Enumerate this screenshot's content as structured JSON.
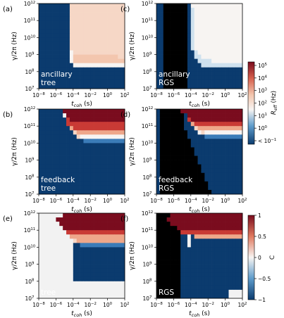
{
  "figure": {
    "colors": {
      "navy": "#0b3b6e",
      "black": "#000000",
      "grey": "#f2f2f2",
      "pale_white": "#f7f4f2",
      "light_peach": "#f6d7c6",
      "peach": "#f3c6ae",
      "salmon": "#eea78a",
      "red": "#c93a35",
      "dark_red": "#7a0c1e",
      "light_blue": "#cfe1ee",
      "mid_blue": "#5d9bcb",
      "blue": "#3b7cb8",
      "text_white": "#ffffff",
      "text_black": "#000000"
    },
    "colorbar_top": {
      "label": "R_eff (Hz)",
      "label_main": "R",
      "label_sub": "eff",
      "label_unit": " (Hz)",
      "ticks": [
        {
          "base": "10",
          "exp": "5",
          "label": "10^5"
        },
        {
          "base": "10",
          "exp": "4",
          "label": "10^4"
        },
        {
          "base": "10",
          "exp": "3",
          "label": "10^3"
        },
        {
          "base": "10",
          "exp": "2",
          "label": "10^2"
        },
        {
          "base": "10",
          "exp": "1",
          "label": "10^1"
        },
        {
          "base": "10",
          "exp": "0",
          "label": "10^0"
        },
        {
          "base": "< 10",
          "exp": "−1",
          "label": "< 10^-1"
        }
      ]
    },
    "colorbar_bottom": {
      "label": "C",
      "ticks": [
        "1",
        "0.5",
        "0",
        "−0.5",
        "−1"
      ]
    }
  },
  "chart_data": [
    {
      "panel": "(a)",
      "type": "heatmap",
      "annotation": [
        "ancillary",
        "tree"
      ],
      "xlabel": "t_coh (s)",
      "ylabel": "γ/2π (Hz)",
      "xticks": [
        "10^-8",
        "10^-6",
        "10^-4",
        "10^-2",
        "10^0",
        "10^2"
      ],
      "yticks": [
        "10^7",
        "10^8",
        "10^9",
        "10^10",
        "10^11",
        "10^12"
      ],
      "xlim": [
        "1e-8",
        "1e2"
      ],
      "ylim": [
        "1e7",
        "1e12"
      ],
      "scale": "log-log",
      "color_scale": "R_eff (Hz), log",
      "rows_top_to_bottom": [
        "NNNNNNNNNPPPPPPPPPPPPPPPP",
        "NNNNNNNNNPPPPPPPPPPPPPPPP",
        "NNNNNNNNNPPPPPPPPPPPPPPPP",
        "NNNNNNNNNPPPPPPPPPPPPPPPP",
        "NNNNNNNNNPPPPPPPPPPPPPPPP",
        "NNNNNNNNNPPPPPPPPPPPPPPPP",
        "NNNNNNNNNPPPPPPPPPPPPPPPP",
        "NNNNNNNNNPPPPPPPPPPPPPPPP",
        "NNNNNNNNNPPPPPPPPPPPPPPPP",
        "NNNNNNNNNPPPPPPPPPPPPPPPP",
        "NNNNNNNNNPPPPPPPPPPPPPPPP",
        "NNNNNNNNNWPPPPPPPPPPPPPPP",
        "NNNNNNNNNWpppppppppppppPP",
        "NNNNNNNNNWppppppppppppppp",
        "NNNNNNNNNNWWWWWWWWWWWWWWW",
        "NNNNNNNNNNNNNNNNNNNNNNNNN",
        "NNNNNNNNNNNNNNNNNNNNNNNNN",
        "NNNNNNNNNNNNNNNNNNNNNNNNN",
        "NNNNNNNNNNNNNNNNNNNNNNNNN",
        "NNNNNNNNNNNNNNNNNNNNNNNNN"
      ]
    },
    {
      "panel": "(b)",
      "type": "heatmap",
      "annotation": [
        "feedback",
        "tree"
      ],
      "xlabel": "t_coh (s)",
      "ylabel": "γ/2π (Hz)",
      "xticks": [
        "10^-8",
        "10^-6",
        "10^-4",
        "10^-2",
        "10^0",
        "10^2"
      ],
      "yticks": [
        "10^7",
        "10^8",
        "10^9",
        "10^10",
        "10^11",
        "10^12"
      ],
      "xlim": [
        "1e-8",
        "1e2"
      ],
      "ylim": [
        "1e7",
        "1e12"
      ],
      "scale": "log-log",
      "color_scale": "R_eff (Hz), log",
      "rows_top_to_bottom": [
        "NNNNNNNDDDDDDDDDDDDDDDDDD",
        "NNNNNNNWDDDDDDDDDDDDDDDDD",
        "NNNNNNNNRDDDDDDDDDDDDDDDD",
        "NNNNNNNNRRRRRRRRRRRRRRRRR",
        "NNNNNNNNNSRRRRRRRRRRRRRRR",
        "NNNNNNNNNNPSSSSSSSSSSSSSS",
        "NNNNNNNNNNNPWWWWWWWWWWWWW",
        "NNNNNNNNNNNNNBBBBBBBBBBBB",
        "NNNNNNNNNNNNNNNNNNNNNNNNN",
        "NNNNNNNNNNNNNNNNNNNNNNNNN",
        "NNNNNNNNNNNNNNNNNNNNNNNNN",
        "NNNNNNNNNNNNNNNNNNNNNNNNN",
        "NNNNNNNNNNNNNNNNNNNNNNNNN",
        "NNNNNNNNNNNNNNNNNNNNNNNNN",
        "NNNNNNNNNNNNNNNNNNNNNNNNN",
        "NNNNNNNNNNNNNNNNNNNNNNNNN",
        "NNNNNNNNNNNNNNNNNNNNNNNNN",
        "NNNNNNNNNNNNNNNNNNNNNNNNN",
        "NNNNNNNNNNNNNNNNNNNNNNNNN",
        "NNNNNNNNNNNNNNNNNNNNNNNNN"
      ]
    },
    {
      "panel": "(c)",
      "type": "heatmap",
      "annotation": [
        "ancillary",
        "RGS"
      ],
      "xlabel": "t_coh (s)",
      "ylabel": "γ/2π (Hz)",
      "xticks": [
        "10^-8",
        "10^-6",
        "10^-4",
        "10^-2",
        "10^0",
        "10^2"
      ],
      "yticks": [
        "10^7",
        "10^8",
        "10^9",
        "10^10",
        "10^11",
        "10^12"
      ],
      "xlim": [
        "1e-8",
        "1e2"
      ],
      "ylim": [
        "1e7",
        "1e12"
      ],
      "scale": "log-log",
      "color_scale": "R_eff (Hz), log",
      "rows_top_to_bottom": [
        "NNKKKKKKKNWWWWWWWWWWWWWWW",
        "NNKKKKKKKNLWWWWWWWWWWWWWW",
        "NNKKKKKKKNLWWWWWWWWWWWWWW",
        "NNKKKKKKKNLWWWWWWWWWWWWWW",
        "NNKKKKKKKNLWWWWWWWWWWWWWW",
        "NNKKKKKKKNLWWWWWWWWWWWWWW",
        "NNKKKKKKKNLWWWWWWWWWWWWWW",
        "NNKKKKKKKNLWWWWWWWWWWWWWW",
        "NNKKKKKKKNLWWWWWWWWWWWWWW",
        "NNKKKKKKKNLWWWWWWWWWWWWWW",
        "NNKKKKKKKNLWWWWWWWWWWWWWW",
        "NNKKKKKKKNNLWWWWWWWWWWWWW",
        "NNKKKKKKKNNLLWWWWWWWWWWWW",
        "NNKKKKKKKNNNLLLLWWWWWWWWW",
        "NNKKKKKKKNNNNLLLLLLLLLLLL",
        "NNKKKKKKKNNNNNNNNNNNNNNNN",
        "NNKKKKKKKNNNNNNNNNNNNNNNN",
        "NNKKKKKKKNNNNNNNNNNNNNNNN",
        "NNKKKKKKKNNNNNNNNNNNNNNNN",
        "NNKKKKKKKNNNNNNNNNNNNNNNN"
      ]
    },
    {
      "panel": "(d)",
      "type": "heatmap",
      "annotation": [
        "feedback",
        "RGS"
      ],
      "xlabel": "t_coh (s)",
      "ylabel": "γ/2π (Hz)",
      "xticks": [
        "10^-8",
        "10^-6",
        "10^-4",
        "10^-2",
        "10^0",
        "10^2"
      ],
      "yticks": [
        "10^7",
        "10^8",
        "10^9",
        "10^10",
        "10^11",
        "10^12"
      ],
      "xlim": [
        "1e-8",
        "1e2"
      ],
      "ylim": [
        "1e7",
        "1e12"
      ],
      "scale": "log-log",
      "color_scale": "R_eff (Hz), log",
      "rows_top_to_bottom": [
        "NKKKKKKDDDDDDDDDDDDDDDDDD",
        "NKKKKKKKNDDDDDDDDDDDDDDDD",
        "NKKKKKKKNRDDDDDDDDDDDDDDD",
        "NKKKKKKKNNSRRRRRRRRRRRRRR",
        "NKKKKKKKNNNPSSSSSSSSSSSSS",
        "NKKKKKKKKNNNWPWWWWWWWWWWW",
        "NKKKKKKKKNNNNNBBBBBBBBBBB",
        "NKKKKKKKKKNNNNNNNNNNNNNNN",
        "NKKKKKKKKKNNNNNNNNNNNNNNN",
        "NKKKKKKKKKKNNNNNNNNNNNNNN",
        "NKKKKKKKKKKNNNNNNNNNNNNNN",
        "NKKKKKKKKKKKNNNNNNNNNNNNN",
        "NKKKKKKKKKKKNNNNNNNNNNNNN",
        "NKKKKKKKKKKKKNNNNNNNNNNNN",
        "NKKKKKKKKKKKKNNNNNNNNNNNN",
        "NKKKKKKKKKKKKKNNNNNNNNNNN",
        "NKKKKKKKKKKKKKNNNNNNNNNNN",
        "NKKKKKKKKKKKKKKNNNNNNNNNN",
        "NKKKKKKKKKKKKKKNNNNNNNNNN",
        "NKKKKKKKKKKKKKKKNNNNNNNNN"
      ]
    },
    {
      "panel": "(e)",
      "type": "heatmap",
      "annotation": [
        "tree"
      ],
      "xlabel": "t_coh (s)",
      "ylabel": "γ/2π (Hz)",
      "xticks": [
        "10^-8",
        "10^-6",
        "10^-4",
        "10^-2",
        "10^0",
        "10^2"
      ],
      "yticks": [
        "10^7",
        "10^8",
        "10^9",
        "10^10",
        "10^11",
        "10^12"
      ],
      "xlim": [
        "1e-8",
        "1e2"
      ],
      "ylim": [
        "1e7",
        "1e12"
      ],
      "scale": "log-log",
      "color_scale": "C, linear from -1 to 1",
      "rows_top_to_bottom": [
        "GGGGGGGDDDDDDDDDDDDDDDDDD",
        "GGGGGDDDDDDDDDDDDDDDDDDDD",
        "GGGGGGDDDDDDDDDDDDDDDDDDD",
        "GGGGGGGDDDDDDDDDDDDDDDDDD",
        "GGGGGGGGRRRRRRRRRRRRRRRRR",
        "GGGGGGGGGSSSSSSSSSSSSSSSS",
        "GGGGGGGGGGPSSSSSSSSSSSSSS",
        "GGGGGGGGGGNNBBBBBBBBBBBBB",
        "GGGGGGGGGGNNNNNNNNNNNNNNN",
        "GGGGGGGGGGNNNNNNNNNNNNNNN",
        "GGGGGGGGGGNNNNNNNNNNNNNNN",
        "GGGGGGGGGGNNNNNNNNNNNNNNN",
        "GGGGGGGGGGNNNNNNNNNNNNNNN",
        "GGGGGGGGGGNNNNNNNNNNNNNNN",
        "GGGGGGGGGGNNNNNNNNNNNNNNN",
        "GGGGGGGGGGNNNNNNNNNNNNNNN",
        "GGGGGGGGGGGGGGGGGGGGGGGGG",
        "GGGGGGGGGGGGGGGGGGGGGGGGG",
        "GGGGGGGGGGGGGGGGGGGGGGGGG",
        "GGGGGGGGGGGGGGGGGGGGGGGGG"
      ]
    },
    {
      "panel": "(f)",
      "type": "heatmap",
      "annotation": [
        "RGS"
      ],
      "xlabel": "t_coh (s)",
      "ylabel": "γ/2π (Hz)",
      "xticks": [
        "10^-8",
        "10^-6",
        "10^-4",
        "10^-2",
        "10^0",
        "10^2"
      ],
      "yticks": [
        "10^7",
        "10^8",
        "10^9",
        "10^10",
        "10^11",
        "10^12"
      ],
      "xlim": [
        "1e-8",
        "1e2"
      ],
      "ylim": [
        "1e7",
        "1e12"
      ],
      "scale": "log-log",
      "color_scale": "C, linear from -1 to 1",
      "rows_top_to_bottom": [
        "KKKKDDDDDDDDDDDDDDDDDDDDD",
        "KKKDDDDDDDDDDDDDDDDDDDDDD",
        "KKKKDDDDDDDDDDDDDDDDDDDDD",
        "KKKKKKDDDDDDDDDDDDDDDDDDD",
        "KKKKKKKRRRRRRRRRRRRRRRRRR",
        "KKKKKKKNNGNSSSSSSSSSSSSSS",
        "KKKKKKKNNGNNNNNNNNNNNNNNN",
        "KKKKKKKNNGNNNNNNNNNNNNNNN",
        "KKKKKKKNNNNNNNNNNNNNNNNNN",
        "KKKKKKKNNNNNNNNNNNNNNNNNN",
        "KKKKKKKNNNNNNNNNNNNNNNNNN",
        "KKKKKKKNNNNNNNNNNNNNNNNNN",
        "KKKKKKKNNNNNNNNNNNNNNNNNN",
        "KKKKKKKNNNNNNNNNNNNNNNNNN",
        "KKKKKKKNNNNNNNNNNNNNNNNNN",
        "KKKKKKKNNNNNNNNNNNNNNNNNN",
        "KKKKKKKNNNNNNNNNNNNNNNNNN",
        "KKKKKKKNNNNNNNNNNNNNNNNNN",
        "KKKKKKKNNNNNNNNNNNNNNGGGG",
        "KKKKKKKNNNNNNNNNNNNNNGGGG"
      ]
    }
  ]
}
